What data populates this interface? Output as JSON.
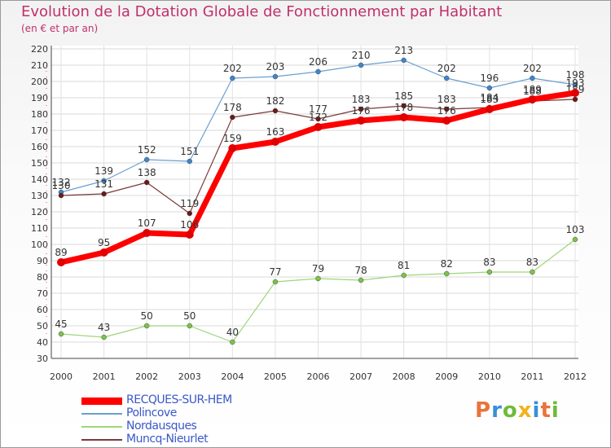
{
  "title": "Evolution de la Dotation Globale de Fonctionnement par Habitant",
  "subtitle": "(en € et par an)",
  "logo": {
    "text": "Proxiti",
    "colors": [
      "#e8743b",
      "#3a8fd6",
      "#6dbb3a",
      "#f2b21b",
      "#3a8fd6",
      "#e8743b",
      "#6dbb3a"
    ]
  },
  "chart_data": {
    "type": "line",
    "title": "Evolution de la Dotation Globale de Fonctionnement par Habitant",
    "subtitle": "(en € et par an)",
    "xlabel": "",
    "ylabel": "",
    "x": [
      "2000",
      "2001",
      "2002",
      "2003",
      "2004",
      "2005",
      "2006",
      "2007",
      "2008",
      "2009",
      "2010",
      "2011",
      "2012"
    ],
    "ylim": [
      30,
      220
    ],
    "yticks": [
      30,
      40,
      50,
      60,
      70,
      80,
      90,
      100,
      110,
      120,
      130,
      140,
      150,
      160,
      170,
      180,
      190,
      200,
      210,
      220
    ],
    "grid": true,
    "legend_position": "bottom-left",
    "series": [
      {
        "name": "Polincove",
        "color": "#6a9fd0",
        "marker": "#3f86c8",
        "width": 1.2,
        "values": [
          132,
          139,
          152,
          151,
          202,
          203,
          206,
          210,
          213,
          202,
          196,
          202,
          198
        ],
        "labels": [
          "132",
          "139",
          "152",
          "151",
          "202",
          "203",
          "206",
          "210",
          "213",
          "202",
          "196",
          "202",
          "198"
        ]
      },
      {
        "name": "Nordausques",
        "color": "#9ed67a",
        "marker": "#7cc24a",
        "width": 1.2,
        "values": [
          45,
          43,
          50,
          50,
          40,
          77,
          79,
          78,
          81,
          82,
          83,
          83,
          103
        ],
        "labels": [
          "45",
          "43",
          "50",
          "50",
          "40",
          "77",
          "79",
          "78",
          "81",
          "82",
          "83",
          "83",
          "103"
        ]
      },
      {
        "name": "Muncq-Nieurlet",
        "color": "#7a3a3a",
        "marker": "#6a1a1a",
        "width": 1.2,
        "values": [
          130,
          131,
          138,
          119,
          178,
          182,
          177,
          183,
          185,
          183,
          184,
          188,
          189
        ],
        "labels": [
          "130",
          "131",
          "138",
          "119",
          "178",
          "182",
          "177",
          "183",
          "185",
          "183",
          "184",
          "188",
          "189"
        ]
      },
      {
        "name": "RECQUES-SUR-HEM",
        "color": "#ff0000",
        "marker": "#e00000",
        "width": 7,
        "values": [
          89,
          95,
          107,
          106,
          159,
          163,
          172,
          176,
          178,
          176,
          183,
          189,
          193
        ],
        "labels": [
          "89",
          "95",
          "107",
          "106",
          "159",
          "163",
          "172",
          "176",
          "178",
          "176",
          "183",
          "189",
          "193"
        ]
      }
    ],
    "legend": [
      {
        "name": "RECQUES-SUR-HEM",
        "color": "#ff0000",
        "thickness": 9
      },
      {
        "name": "Polincove",
        "color": "#6a9fd0",
        "thickness": 2
      },
      {
        "name": "Nordausques",
        "color": "#9ed67a",
        "thickness": 2
      },
      {
        "name": "Muncq-Nieurlet",
        "color": "#7a3a3a",
        "thickness": 2
      }
    ]
  }
}
